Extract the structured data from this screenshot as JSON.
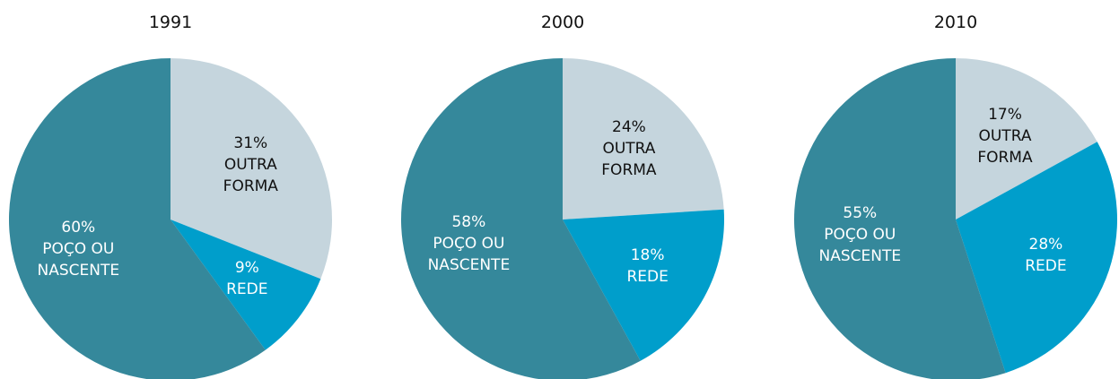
{
  "chart_data": [
    {
      "type": "pie",
      "title": "1991",
      "categories": [
        "OUTRA FORMA",
        "REDE",
        "POÇO OU NASCENTE"
      ],
      "values": [
        31,
        9,
        60
      ],
      "value_labels": [
        "31%",
        "9%",
        "60%"
      ],
      "colors": [
        "#c5d5dd",
        "#009ecb",
        "#35889b"
      ]
    },
    {
      "type": "pie",
      "title": "2000",
      "categories": [
        "OUTRA FORMA",
        "REDE",
        "POÇO OU NASCENTE"
      ],
      "values": [
        24,
        18,
        58
      ],
      "value_labels": [
        "24%",
        "18%",
        "58%"
      ],
      "colors": [
        "#c5d5dd",
        "#009ecb",
        "#35889b"
      ]
    },
    {
      "type": "pie",
      "title": "2010",
      "categories": [
        "OUTRA FORMA",
        "REDE",
        "POÇO OU NASCENTE"
      ],
      "values": [
        17,
        28,
        55
      ],
      "value_labels": [
        "17%",
        "28%",
        "55%"
      ],
      "colors": [
        "#c5d5dd",
        "#009ecb",
        "#35889b"
      ]
    }
  ]
}
